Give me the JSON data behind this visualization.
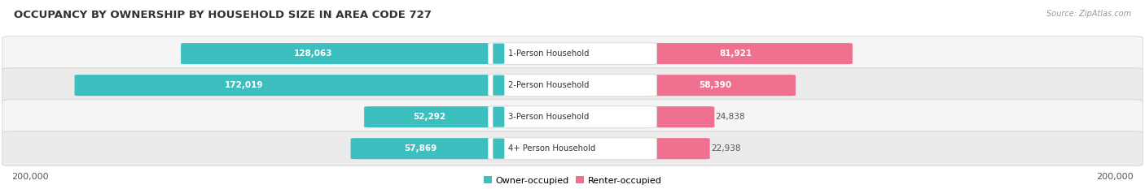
{
  "title": "OCCUPANCY BY OWNERSHIP BY HOUSEHOLD SIZE IN AREA CODE 727",
  "source": "Source: ZipAtlas.com",
  "categories": [
    "1-Person Household",
    "2-Person Household",
    "3-Person Household",
    "4+ Person Household"
  ],
  "owner_values": [
    128063,
    172019,
    52292,
    57869
  ],
  "renter_values": [
    81921,
    58390,
    24838,
    22938
  ],
  "max_value": 200000,
  "owner_color": "#3DBFBF",
  "renter_color": "#F07090",
  "owner_label": "Owner-occupied",
  "renter_label": "Renter-occupied",
  "background_color": "#FFFFFF",
  "row_light": "#F5F5F5",
  "row_dark": "#EBEBEB",
  "label_bg": "#FFFFFF",
  "border_color": "#DDDDDD"
}
